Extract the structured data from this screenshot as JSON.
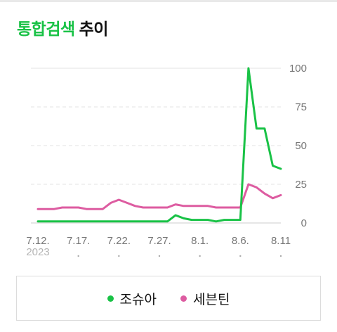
{
  "heading": {
    "highlight": "통합검색",
    "rest": "추이"
  },
  "colors": {
    "accent": "#19c246",
    "series1": "#19c246",
    "series2": "#dd5ca1",
    "grid": "#e3e3e3"
  },
  "chart_data": {
    "type": "line",
    "title": "통합검색 추이",
    "x": [
      "7.12.",
      "7.13.",
      "7.14.",
      "7.15.",
      "7.16.",
      "7.17.",
      "7.18.",
      "7.19.",
      "7.20.",
      "7.21.",
      "7.22.",
      "7.23.",
      "7.24.",
      "7.25.",
      "7.26.",
      "7.27.",
      "7.28.",
      "7.29.",
      "7.30.",
      "7.31.",
      "8.1.",
      "8.2.",
      "8.3.",
      "8.4.",
      "8.5.",
      "8.6.",
      "8.7.",
      "8.8.",
      "8.9.",
      "8.10.",
      "8.11."
    ],
    "x_tick_labels": [
      "7.12.",
      "7.17.",
      "7.22.",
      "7.27.",
      "8.1.",
      "8.6.",
      "8.11"
    ],
    "x_tick_index": [
      0,
      5,
      10,
      15,
      20,
      25,
      30
    ],
    "year_label": "2023",
    "y_ticks": [
      0,
      25,
      50,
      75,
      100
    ],
    "ylim": [
      0,
      100
    ],
    "grid": true,
    "legend_position": "bottom",
    "series": [
      {
        "name": "조슈아",
        "color": "#19c246",
        "values": [
          1,
          1,
          1,
          1,
          1,
          1,
          1,
          1,
          1,
          1,
          1,
          1,
          1,
          1,
          1,
          1,
          1,
          5,
          3,
          2,
          2,
          2,
          1,
          2,
          2,
          2,
          100,
          61,
          61,
          37,
          35
        ]
      },
      {
        "name": "세븐틴",
        "color": "#dd5ca1",
        "values": [
          9,
          9,
          9,
          10,
          10,
          10,
          9,
          9,
          9,
          13,
          15,
          13,
          11,
          10,
          10,
          10,
          10,
          12,
          11,
          11,
          11,
          11,
          10,
          10,
          10,
          10,
          25,
          23,
          19,
          16,
          18
        ]
      }
    ]
  }
}
